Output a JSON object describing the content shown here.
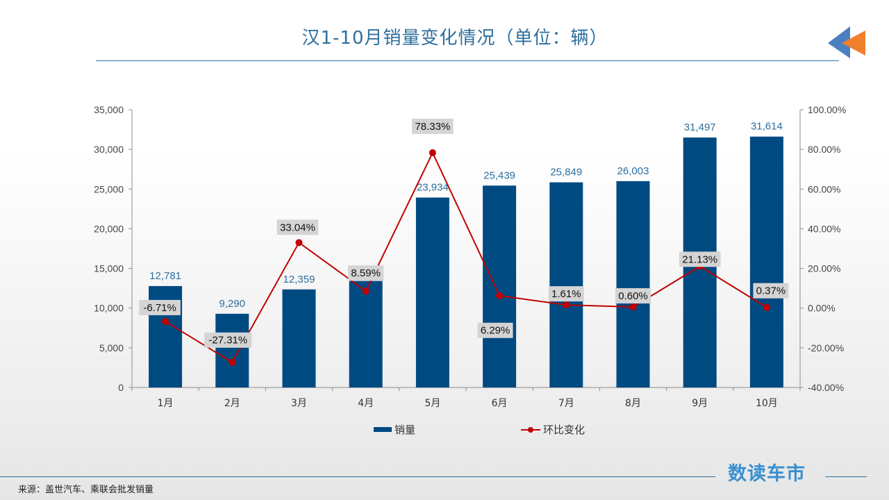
{
  "header": {
    "title": "汉1-10月销量变化情况（单位：辆）"
  },
  "chart_data": {
    "type": "bar",
    "categories": [
      "1月",
      "2月",
      "3月",
      "4月",
      "5月",
      "6月",
      "7月",
      "8月",
      "9月",
      "10月"
    ],
    "series": [
      {
        "name": "销量",
        "type": "bar",
        "axis": "left",
        "color": "#004a82",
        "values": [
          12781,
          9290,
          12359,
          13421,
          23934,
          25439,
          25849,
          26003,
          31497,
          31614
        ],
        "labels": [
          "12,781",
          "9,290",
          "12,359",
          "13,421",
          "23,934",
          "25,439",
          "25,849",
          "26,003",
          "31,497",
          "31,614"
        ]
      },
      {
        "name": "环比变化",
        "type": "line",
        "axis": "right",
        "color": "#c00000",
        "values": [
          -6.71,
          -27.31,
          33.04,
          8.59,
          78.33,
          6.29,
          1.61,
          0.6,
          21.13,
          0.37
        ],
        "labels": [
          "-6.71%",
          "-27.31%",
          "33.04%",
          "8.59%",
          "78.33%",
          "6.29%",
          "1.61%",
          "0.60%",
          "21.13%",
          "0.37%"
        ]
      }
    ],
    "y_left": {
      "range": [
        0,
        35000
      ],
      "ticks": [
        "0",
        "5,000",
        "10,000",
        "15,000",
        "20,000",
        "25,000",
        "30,000",
        "35,000"
      ]
    },
    "y_right": {
      "range": [
        -40,
        100
      ],
      "ticks": [
        "-40.00%",
        "-20.00%",
        "0.00%",
        "20.00%",
        "40.00%",
        "60.00%",
        "80.00%",
        "100.00%"
      ]
    },
    "grid": false,
    "legend_position": "bottom"
  },
  "legend": {
    "bar_label": "销量",
    "line_label": "环比变化"
  },
  "footer": {
    "source": "来源：盖世汽车、乘联会批发销量",
    "brand": "数读车市"
  },
  "colors": {
    "accent": "#2e6f9e",
    "bar": "#004a82",
    "line": "#c00000",
    "label_box": "#d4d4d4",
    "brand": "#3a8fcf",
    "logo_blue": "#4a7fc1",
    "logo_orange": "#f07f2e"
  }
}
